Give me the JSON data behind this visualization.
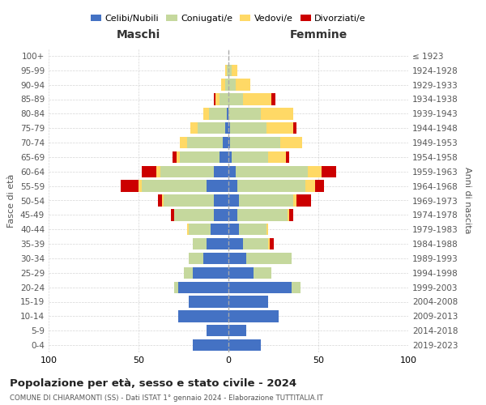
{
  "age_groups": [
    "0-4",
    "5-9",
    "10-14",
    "15-19",
    "20-24",
    "25-29",
    "30-34",
    "35-39",
    "40-44",
    "45-49",
    "50-54",
    "55-59",
    "60-64",
    "65-69",
    "70-74",
    "75-79",
    "80-84",
    "85-89",
    "90-94",
    "95-99",
    "100+"
  ],
  "birth_years": [
    "2019-2023",
    "2014-2018",
    "2009-2013",
    "2004-2008",
    "1999-2003",
    "1994-1998",
    "1989-1993",
    "1984-1988",
    "1979-1983",
    "1974-1978",
    "1969-1973",
    "1964-1968",
    "1959-1963",
    "1954-1958",
    "1949-1953",
    "1944-1948",
    "1939-1943",
    "1934-1938",
    "1929-1933",
    "1924-1928",
    "≤ 1923"
  ],
  "male_celibi": [
    20,
    12,
    28,
    22,
    28,
    20,
    14,
    12,
    10,
    8,
    8,
    12,
    8,
    5,
    3,
    2,
    1,
    0,
    0,
    0,
    0
  ],
  "male_coniugati": [
    0,
    0,
    0,
    0,
    2,
    5,
    8,
    8,
    12,
    22,
    28,
    36,
    30,
    22,
    20,
    15,
    10,
    5,
    2,
    1,
    0
  ],
  "male_vedovi": [
    0,
    0,
    0,
    0,
    0,
    0,
    0,
    0,
    1,
    0,
    1,
    2,
    2,
    2,
    4,
    4,
    3,
    2,
    2,
    1,
    0
  ],
  "male_divorziati": [
    0,
    0,
    0,
    0,
    0,
    0,
    0,
    0,
    0,
    2,
    2,
    10,
    8,
    2,
    0,
    0,
    0,
    1,
    0,
    0,
    0
  ],
  "female_nubili": [
    18,
    10,
    28,
    22,
    35,
    14,
    10,
    8,
    6,
    5,
    6,
    5,
    4,
    2,
    1,
    1,
    0,
    0,
    0,
    0,
    0
  ],
  "female_coniugate": [
    0,
    0,
    0,
    0,
    5,
    10,
    25,
    14,
    15,
    28,
    30,
    38,
    40,
    20,
    28,
    20,
    18,
    8,
    4,
    2,
    0
  ],
  "female_vedove": [
    0,
    0,
    0,
    0,
    0,
    0,
    0,
    1,
    1,
    1,
    2,
    5,
    8,
    10,
    12,
    15,
    18,
    16,
    8,
    3,
    0
  ],
  "female_divorziate": [
    0,
    0,
    0,
    0,
    0,
    0,
    0,
    2,
    0,
    2,
    8,
    5,
    8,
    2,
    0,
    2,
    0,
    2,
    0,
    0,
    0
  ],
  "color_celibi": "#4472C4",
  "color_coniugati": "#C5D89D",
  "color_vedovi": "#FFD966",
  "color_divorziati": "#CC0000",
  "title": "Popolazione per età, sesso e stato civile - 2024",
  "subtitle": "COMUNE DI CHIARAMONTI (SS) - Dati ISTAT 1° gennaio 2024 - Elaborazione TUTTITALIA.IT",
  "label_maschi": "Maschi",
  "label_femmine": "Femmine",
  "ylabel_left": "Fasce di età",
  "ylabel_right": "Anni di nascita",
  "xlim": 100,
  "legend_labels": [
    "Celibi/Nubili",
    "Coniugati/e",
    "Vedovi/e",
    "Divorziati/e"
  ]
}
